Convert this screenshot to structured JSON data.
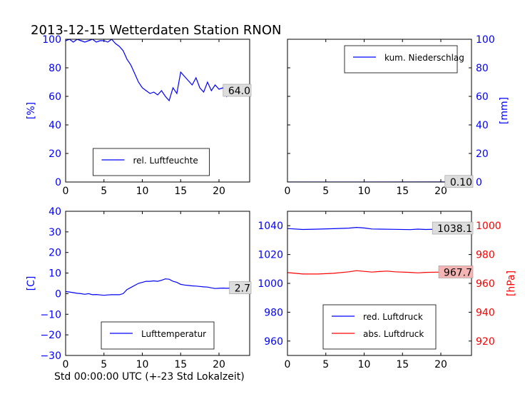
{
  "figure": {
    "title": "2013-12-15 Wetterdaten Station RNON",
    "xlabel": "Std 00:00:00 UTC (+-23 Std Lokalzeit)"
  },
  "colors": {
    "blue": "#0000ff",
    "red": "#ff0000",
    "label_bg": "#dddddd",
    "red_label_bg": "#f4b4b4"
  },
  "chart_data": [
    {
      "type": "line",
      "ylabel": "[%]",
      "xlim": [
        0,
        24
      ],
      "ylim": [
        0,
        100
      ],
      "xticks": [
        0,
        5,
        10,
        15,
        20
      ],
      "yticks": [
        0,
        20,
        40,
        60,
        80,
        100
      ],
      "legend": "lower-center",
      "last_value_label": "64.0",
      "series": [
        {
          "name": "rel. Luftfeuchte",
          "color": "#0000ff",
          "x": [
            0,
            0.5,
            1,
            1.5,
            2,
            2.5,
            3,
            3.5,
            4,
            4.5,
            5,
            5.5,
            6,
            6.5,
            7,
            7.5,
            8,
            8.5,
            9,
            9.5,
            10,
            10.5,
            11,
            11.5,
            12,
            12.5,
            13,
            13.5,
            14,
            14.5,
            15,
            15.5,
            16,
            16.5,
            17,
            17.5,
            18,
            18.5,
            19,
            19.5,
            20,
            20.5,
            21,
            21.5,
            22,
            22.5,
            23,
            23.5,
            24
          ],
          "values": [
            99,
            100,
            98,
            100,
            99,
            98,
            99,
            100,
            98,
            99,
            99,
            98,
            100,
            97,
            95,
            92,
            86,
            82,
            76,
            70,
            66,
            64,
            62,
            63,
            61,
            64,
            60,
            57,
            66,
            62,
            77,
            74,
            71,
            68,
            73,
            66,
            63,
            70,
            64,
            68,
            65,
            66,
            60,
            68,
            62,
            66,
            63,
            66,
            64
          ]
        }
      ]
    },
    {
      "type": "line",
      "ylabel": "[mm]",
      "xlim": [
        0,
        24
      ],
      "ylim": [
        0,
        100
      ],
      "xticks": [
        0,
        5,
        10,
        15,
        20
      ],
      "yticks": [
        0,
        20,
        40,
        60,
        80,
        100
      ],
      "legend": "upper-center",
      "last_value_label": "0.10",
      "series": [
        {
          "name": "kum. Niederschlag",
          "color": "#0000ff",
          "x": [
            0,
            24
          ],
          "values": [
            0,
            0.1
          ]
        }
      ]
    },
    {
      "type": "line",
      "ylabel": "[C]",
      "xlim": [
        0,
        24
      ],
      "ylim": [
        -30,
        40
      ],
      "xticks": [
        0,
        5,
        10,
        15,
        20
      ],
      "yticks": [
        -30,
        -20,
        -10,
        0,
        10,
        20,
        30,
        40
      ],
      "legend": "lower-center",
      "last_value_label": "2.7",
      "series": [
        {
          "name": "Lufttemperatur",
          "color": "#0000ff",
          "x": [
            0,
            0.5,
            1,
            1.5,
            2,
            2.5,
            3,
            3.5,
            4,
            4.5,
            5,
            5.5,
            6,
            6.5,
            7,
            7.5,
            8,
            8.5,
            9,
            9.5,
            10,
            10.5,
            11,
            11.5,
            12,
            12.5,
            13,
            13.5,
            14,
            14.5,
            15,
            15.5,
            16,
            16.5,
            17,
            17.5,
            18,
            18.5,
            19,
            19.5,
            20,
            20.5,
            21,
            21.5,
            22,
            22.5,
            23,
            23.5,
            24
          ],
          "values": [
            1.0,
            0.8,
            0.5,
            0.2,
            0.0,
            -0.3,
            0.0,
            -0.5,
            -0.4,
            -0.6,
            -0.8,
            -0.6,
            -0.5,
            -0.5,
            -0.5,
            0.0,
            2.0,
            3.0,
            4.0,
            5.0,
            5.5,
            6.0,
            6.0,
            6.2,
            6.0,
            6.5,
            7.2,
            7.0,
            6.0,
            5.5,
            4.5,
            4.2,
            4.0,
            3.8,
            3.7,
            3.5,
            3.3,
            3.2,
            2.8,
            2.5,
            2.6,
            2.7,
            2.6,
            2.7,
            2.6,
            2.7,
            2.7,
            2.8,
            2.7
          ]
        }
      ]
    },
    {
      "type": "line",
      "ylabel_right": "[hPa]",
      "xlim": [
        0,
        24
      ],
      "ylim_left": [
        950,
        1050
      ],
      "yticks_left": [
        960,
        980,
        1000,
        1020,
        1040
      ],
      "ylim_right": [
        910,
        1010
      ],
      "yticks_right": [
        920,
        940,
        960,
        980,
        1000
      ],
      "xticks": [
        0,
        5,
        10,
        15,
        20
      ],
      "legend": "lower-center",
      "last_value_labels": [
        "1038.1",
        "967.7"
      ],
      "series": [
        {
          "name": "red. Luftdruck",
          "color": "#0000ff",
          "axis": "left",
          "x": [
            0,
            2,
            4,
            6,
            8,
            9,
            10,
            11,
            12,
            14,
            16,
            17,
            18,
            20,
            22,
            24
          ],
          "values": [
            1038.0,
            1037.4,
            1037.6,
            1037.9,
            1038.3,
            1038.8,
            1038.4,
            1037.7,
            1037.6,
            1037.5,
            1037.3,
            1037.6,
            1037.4,
            1037.6,
            1037.9,
            1038.1
          ]
        },
        {
          "name": "abs. Luftdruck",
          "color": "#ff0000",
          "axis": "right",
          "x": [
            0,
            2,
            4,
            6,
            8,
            9,
            10,
            11,
            12,
            13,
            14,
            16,
            17,
            18,
            20,
            22,
            24
          ],
          "values": [
            967.5,
            966.5,
            966.5,
            967.0,
            968.0,
            968.8,
            968.3,
            967.8,
            968.2,
            968.5,
            968.0,
            967.6,
            967.3,
            967.6,
            967.8,
            967.6,
            967.7
          ]
        }
      ]
    }
  ]
}
